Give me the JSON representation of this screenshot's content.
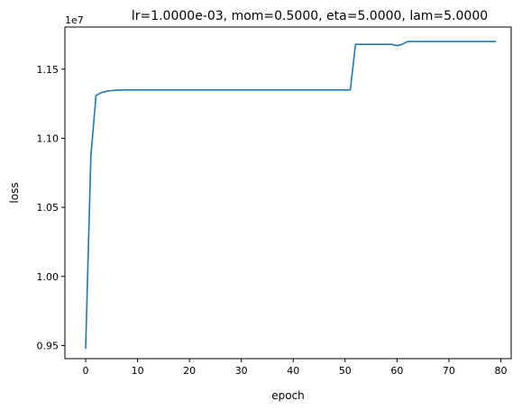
{
  "chart_data": {
    "type": "line",
    "title": "lr=1.0000e-03, mom=0.5000, eta=5.0000, lam=5.0000",
    "xlabel": "epoch",
    "ylabel": "loss",
    "y_offset_label": "1e7",
    "xlim": [
      -4,
      82
    ],
    "ylim": [
      0.9405,
      1.1805
    ],
    "x_ticks": [
      0,
      10,
      20,
      30,
      40,
      50,
      60,
      70,
      80
    ],
    "y_ticks": [
      0.95,
      1.0,
      1.05,
      1.1,
      1.15
    ],
    "y_tick_labels": [
      "0.95",
      "1.00",
      "1.05",
      "1.10",
      "1.15"
    ],
    "grid": false,
    "series": [
      {
        "color": "#1f77b4",
        "x": [
          0,
          1,
          2,
          3,
          4,
          5,
          6,
          7,
          8,
          9,
          10,
          11,
          12,
          13,
          14,
          15,
          16,
          17,
          18,
          19,
          20,
          21,
          22,
          23,
          24,
          25,
          26,
          27,
          28,
          29,
          30,
          31,
          32,
          33,
          34,
          35,
          36,
          37,
          38,
          39,
          40,
          41,
          42,
          43,
          44,
          45,
          46,
          47,
          48,
          49,
          50,
          51,
          52,
          53,
          54,
          55,
          56,
          57,
          58,
          59,
          60,
          61,
          62,
          63,
          64,
          65,
          66,
          67,
          68,
          69,
          70,
          71,
          72,
          73,
          74,
          75,
          76,
          77,
          78,
          79
        ],
        "y": [
          0.948,
          1.087,
          1.131,
          1.133,
          1.134,
          1.1345,
          1.1348,
          1.135,
          1.135,
          1.135,
          1.135,
          1.135,
          1.135,
          1.135,
          1.135,
          1.135,
          1.135,
          1.135,
          1.135,
          1.135,
          1.135,
          1.135,
          1.135,
          1.135,
          1.135,
          1.135,
          1.135,
          1.135,
          1.135,
          1.135,
          1.135,
          1.135,
          1.135,
          1.135,
          1.135,
          1.135,
          1.135,
          1.135,
          1.135,
          1.135,
          1.135,
          1.135,
          1.135,
          1.135,
          1.135,
          1.135,
          1.135,
          1.135,
          1.135,
          1.135,
          1.135,
          1.135,
          1.168,
          1.168,
          1.168,
          1.168,
          1.168,
          1.168,
          1.168,
          1.168,
          1.167,
          1.168,
          1.17,
          1.17,
          1.17,
          1.17,
          1.17,
          1.17,
          1.17,
          1.17,
          1.17,
          1.17,
          1.17,
          1.17,
          1.17,
          1.17,
          1.17,
          1.17,
          1.17,
          1.17
        ]
      }
    ]
  }
}
